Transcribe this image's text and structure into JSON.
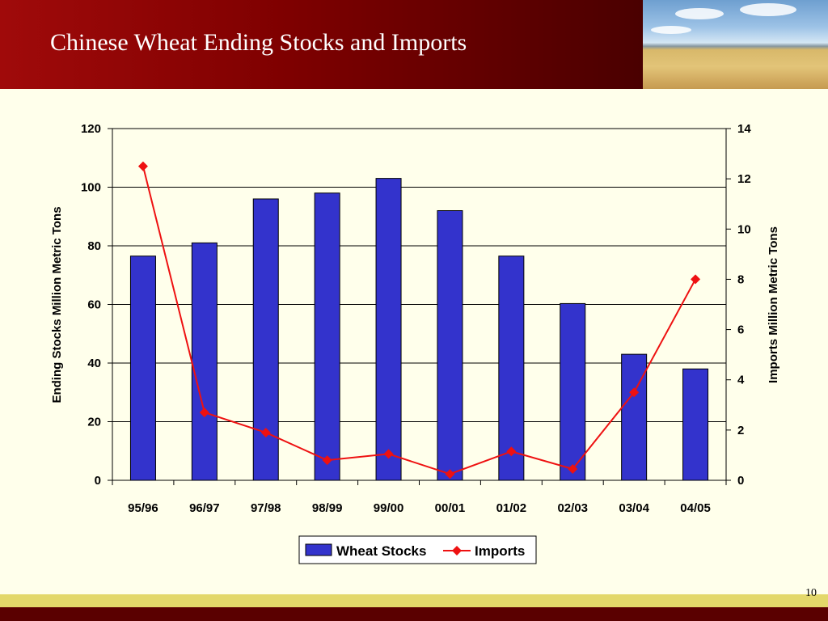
{
  "slide": {
    "title": "Chinese Wheat Ending Stocks and Imports",
    "page_number": "10"
  },
  "chart_data": {
    "type": "bar",
    "categories": [
      "95/96",
      "96/97",
      "97/98",
      "98/99",
      "99/00",
      "00/01",
      "01/02",
      "02/03",
      "03/04",
      "04/05"
    ],
    "series": [
      {
        "name": "Wheat Stocks",
        "type": "bar",
        "axis": "left",
        "color": "#3333CC",
        "values": [
          76.5,
          81,
          96,
          98,
          103,
          92,
          76.5,
          60.3,
          43,
          38
        ]
      },
      {
        "name": "Imports",
        "type": "line",
        "axis": "right",
        "color": "#EE1111",
        "values": [
          12.5,
          2.7,
          1.9,
          0.8,
          1.05,
          0.25,
          1.15,
          0.45,
          3.5,
          8.0
        ]
      }
    ],
    "ylabel": "Ending Stocks Million Metric Tons",
    "ylabel_right": "Imports Million Metric Tons",
    "ylim": [
      0,
      120
    ],
    "yticks": [
      0,
      20,
      40,
      60,
      80,
      100,
      120
    ],
    "ylim_right": [
      0,
      14
    ],
    "yticks_right": [
      0,
      2,
      4,
      6,
      8,
      10,
      12,
      14
    ],
    "grid": true,
    "legend_position": "bottom"
  }
}
